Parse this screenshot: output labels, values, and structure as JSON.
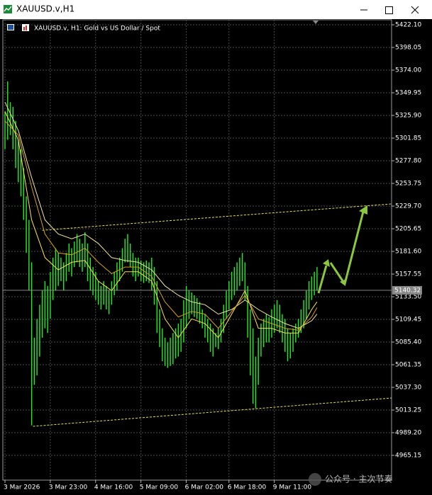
{
  "window": {
    "title": "XAUUSD.v,H1"
  },
  "chart_data": {
    "type": "hilo",
    "title": "XAUUSD.v, H1:  Gold vs US Dollar / Spot",
    "watermark": "公众号 · 主次节奏",
    "color": "#22ee22",
    "grid": true,
    "xlim": [
      -0.8,
      144.95
    ],
    "xticks": [
      {
        "value": 0,
        "label": "3 Mar 2026"
      },
      {
        "value": 17,
        "label": "3 Mar 23:00"
      },
      {
        "value": 34,
        "label": "4 Mar 16:00"
      },
      {
        "value": 51,
        "label": "5 Mar 09:00"
      },
      {
        "value": 68,
        "label": "6 Mar 02:00"
      },
      {
        "value": 84,
        "label": "6 Mar 18:00"
      },
      {
        "value": 101,
        "label": "9 Mar 11:00"
      }
    ],
    "ylim": [
      4938.85,
      5427.36
    ],
    "yticks": [
      {
        "value": 5422.1,
        "label": "5422.10"
      },
      {
        "value": 5398.05,
        "label": "5398.05"
      },
      {
        "value": 5374,
        "label": "5374.00"
      },
      {
        "value": 5349.95,
        "label": "5349.95"
      },
      {
        "value": 5325.9,
        "label": "5325.90"
      },
      {
        "value": 5301.85,
        "label": "5301.85"
      },
      {
        "value": 5277.8,
        "label": "5277.80"
      },
      {
        "value": 5253.75,
        "label": "5253.75"
      },
      {
        "value": 5229.7,
        "label": "5229.70"
      },
      {
        "value": 5205.65,
        "label": "5205.65"
      },
      {
        "value": 5181.6,
        "label": "5181.60"
      },
      {
        "value": 5157.55,
        "label": "5157.55"
      },
      {
        "value": 5133.5,
        "label": "5133.50"
      },
      {
        "value": 5109.45,
        "label": "5109.45"
      },
      {
        "value": 5085.4,
        "label": "5085.40"
      },
      {
        "value": 5061.35,
        "label": "5061.35"
      },
      {
        "value": 5037.3,
        "label": "5037.30"
      },
      {
        "value": 5013.25,
        "label": "5013.25"
      },
      {
        "value": 4989.2,
        "label": "4989.20"
      },
      {
        "value": 4965.15,
        "label": "4965.15"
      }
    ],
    "last_price": {
      "value": 5140.32,
      "label": "5140.32"
    },
    "high": [
      5330,
      5362,
      5340,
      5335,
      5320,
      5300,
      5290,
      5270,
      5240,
      5215,
      5170,
      5090,
      5110,
      5125,
      5140,
      5150,
      5145,
      5160,
      5175,
      5185,
      5180,
      5175,
      5170,
      5180,
      5190,
      5185,
      5192,
      5200,
      5195,
      5190,
      5202,
      5190,
      5175,
      5165,
      5160,
      5150,
      5145,
      5150,
      5145,
      5140,
      5150,
      5160,
      5170,
      5175,
      5185,
      5195,
      5200,
      5190,
      5180,
      5175,
      5175,
      5172,
      5170,
      5172,
      5170,
      5175,
      5165,
      5150,
      5120,
      5100,
      5090,
      5085,
      5090,
      5095,
      5100,
      5105,
      5110,
      5130,
      5145,
      5140,
      5138,
      5135,
      5132,
      5128,
      5120,
      5115,
      5110,
      5105,
      5100,
      5095,
      5100,
      5110,
      5125,
      5140,
      5150,
      5160,
      5165,
      5170,
      5175,
      5180,
      5170,
      5145,
      5120,
      5100,
      5070,
      5090,
      5105,
      5110,
      5115,
      5112,
      5120,
      5125,
      5130,
      5125,
      5115,
      5110,
      5100,
      5095,
      5100,
      5105,
      5110,
      5120,
      5130,
      5140,
      5150,
      5155,
      5160,
      5165
    ],
    "low": [
      5290,
      5300,
      5305,
      5290,
      5270,
      5255,
      5240,
      5215,
      5180,
      5140,
      4997,
      5040,
      5050,
      5070,
      5090,
      5100,
      5095,
      5110,
      5130,
      5140,
      5145,
      5150,
      5140,
      5150,
      5160,
      5155,
      5165,
      5170,
      5165,
      5160,
      5165,
      5150,
      5140,
      5135,
      5130,
      5125,
      5120,
      5125,
      5120,
      5115,
      5125,
      5135,
      5140,
      5150,
      5160,
      5170,
      5170,
      5165,
      5155,
      5150,
      5155,
      5150,
      5148,
      5150,
      5148,
      5140,
      5125,
      5095,
      5080,
      5065,
      5060,
      5058,
      5060,
      5062,
      5068,
      5070,
      5075,
      5085,
      5100,
      5110,
      5115,
      5112,
      5110,
      5105,
      5100,
      5090,
      5085,
      5075,
      5070,
      5080,
      5078,
      5085,
      5095,
      5110,
      5120,
      5130,
      5135,
      5140,
      5145,
      5150,
      5130,
      5090,
      5050,
      5020,
      5015,
      5040,
      5070,
      5080,
      5085,
      5085,
      5090,
      5095,
      5100,
      5095,
      5085,
      5075,
      5065,
      5068,
      5075,
      5085,
      5090,
      5095,
      5100,
      5110,
      5120,
      5130,
      5135,
      5140
    ],
    "lines": [
      {
        "color": "#ffe14d",
        "x": [
          0,
          5,
          10,
          15,
          20,
          25,
          30,
          35,
          40,
          45,
          50,
          55,
          60,
          65,
          70,
          75,
          80,
          85,
          90,
          95,
          100,
          105,
          110,
          115,
          117
        ],
        "values": [
          5330,
          5300,
          5215,
          5175,
          5162,
          5170,
          5172,
          5150,
          5140,
          5160,
          5160,
          5150,
          5110,
          5090,
          5110,
          5105,
          5090,
          5115,
          5140,
          5100,
          5100,
          5095,
          5095,
          5120,
          5128
        ]
      },
      {
        "color": "#f3e6a0",
        "x": [
          0,
          5,
          10,
          15,
          20,
          25,
          30,
          35,
          40,
          45,
          50,
          55,
          60,
          65,
          70,
          75,
          80,
          85,
          90,
          95,
          100,
          105,
          110,
          115,
          117
        ],
        "values": [
          5340,
          5310,
          5260,
          5215,
          5200,
          5195,
          5200,
          5190,
          5175,
          5172,
          5170,
          5162,
          5145,
          5135,
          5128,
          5125,
          5115,
          5120,
          5130,
          5120,
          5112,
          5105,
          5100,
          5108,
          5115
        ]
      },
      {
        "color": "#d4a020",
        "x": [
          0,
          5,
          10,
          15,
          20,
          25,
          30,
          35,
          40,
          45,
          50,
          55,
          60,
          65,
          70,
          75,
          80,
          85,
          90,
          95,
          100,
          105,
          110,
          115,
          117
        ],
        "values": [
          5320,
          5305,
          5250,
          5200,
          5180,
          5178,
          5185,
          5170,
          5158,
          5165,
          5165,
          5155,
          5128,
          5112,
          5118,
          5115,
          5100,
          5118,
          5135,
          5110,
          5105,
          5100,
          5098,
          5112,
          5122
        ]
      }
    ],
    "trendlines": [
      {
        "color": "#e8e060",
        "x": [
          14,
          144.95
        ],
        "values": [
          5204,
          5232
        ]
      },
      {
        "color": "#e8e060",
        "x": [
          10.5,
          144.95
        ],
        "values": [
          4996,
          5026
        ]
      }
    ]
  }
}
